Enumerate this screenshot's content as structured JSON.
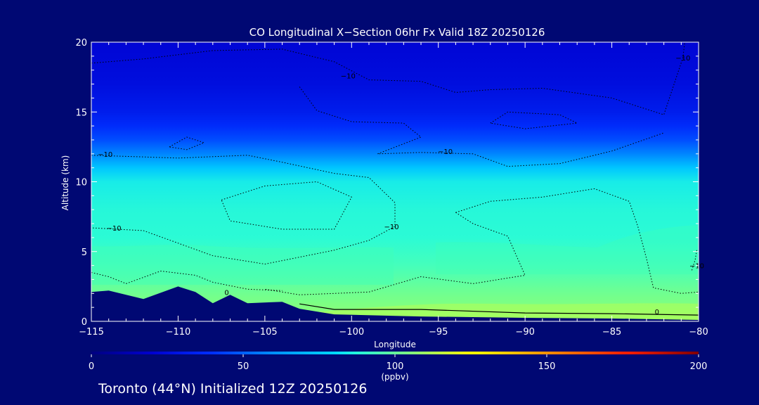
{
  "chart_data": {
    "type": "heatmap",
    "title": "CO Longitudinal X−Section 06hr  Fx Valid 18Z 20250126",
    "xlabel": "Longitude",
    "ylabel": "Altitude (km)",
    "xlim": [
      -115,
      -80
    ],
    "ylim": [
      0,
      20
    ],
    "x_ticks": [
      -115,
      -110,
      -105,
      -100,
      -95,
      -90,
      -85,
      -80
    ],
    "x_tick_labels": [
      "−115",
      "−110",
      "−105",
      "−100",
      "−95",
      "−90",
      "−85",
      "−80"
    ],
    "y_ticks": [
      0,
      5,
      10,
      15,
      20
    ],
    "y_tick_labels": [
      "0",
      "5",
      "10",
      "15",
      "20"
    ],
    "colorbar": {
      "label": "(ppbv)",
      "range": [
        0,
        200
      ],
      "ticks": [
        0,
        50,
        100,
        150,
        200
      ],
      "tick_labels": [
        "0",
        "50",
        "100",
        "150",
        "200"
      ],
      "stops": [
        {
          "v": 0,
          "c": "#000080"
        },
        {
          "v": 20,
          "c": "#0000d0"
        },
        {
          "v": 40,
          "c": "#0030ff"
        },
        {
          "v": 60,
          "c": "#0090ff"
        },
        {
          "v": 80,
          "c": "#00d8ff"
        },
        {
          "v": 90,
          "c": "#30ffd0"
        },
        {
          "v": 105,
          "c": "#80ff80"
        },
        {
          "v": 125,
          "c": "#ffff00"
        },
        {
          "v": 150,
          "c": "#ff9000"
        },
        {
          "v": 175,
          "c": "#ff2000"
        },
        {
          "v": 200,
          "c": "#800000"
        }
      ]
    },
    "co_profile": [
      {
        "alt": 0,
        "ppbv": 108
      },
      {
        "alt": 2,
        "ppbv": 102
      },
      {
        "alt": 4,
        "ppbv": 94
      },
      {
        "alt": 6,
        "ppbv": 89
      },
      {
        "alt": 8,
        "ppbv": 88
      },
      {
        "alt": 10,
        "ppbv": 85
      },
      {
        "alt": 11,
        "ppbv": 75
      },
      {
        "alt": 12,
        "ppbv": 58
      },
      {
        "alt": 13,
        "ppbv": 46
      },
      {
        "alt": 14,
        "ppbv": 38
      },
      {
        "alt": 15,
        "ppbv": 32
      },
      {
        "alt": 17,
        "ppbv": 26
      },
      {
        "alt": 20,
        "ppbv": 22
      }
    ],
    "terrain_km": [
      {
        "lon": -115,
        "alt": 2.1
      },
      {
        "lon": -114,
        "alt": 2.2
      },
      {
        "lon": -112,
        "alt": 1.6
      },
      {
        "lon": -110,
        "alt": 2.5
      },
      {
        "lon": -109,
        "alt": 2.1
      },
      {
        "lon": -108,
        "alt": 1.3
      },
      {
        "lon": -107,
        "alt": 1.9
      },
      {
        "lon": -106,
        "alt": 1.3
      },
      {
        "lon": -104,
        "alt": 1.4
      },
      {
        "lon": -103,
        "alt": 0.9
      },
      {
        "lon": -101,
        "alt": 0.5
      },
      {
        "lon": -96,
        "alt": 0.35
      },
      {
        "lon": -90,
        "alt": 0.25
      },
      {
        "lon": -85,
        "alt": 0.2
      },
      {
        "lon": -80,
        "alt": 0.1
      }
    ],
    "contour_labels": [
      {
        "text": "−10",
        "lon": -100.2,
        "alt": 17.4
      },
      {
        "text": "−10",
        "lon": -114.2,
        "alt": 11.8
      },
      {
        "text": "−10",
        "lon": -94.6,
        "alt": 12.0
      },
      {
        "text": "−10",
        "lon": -113.7,
        "alt": 6.5
      },
      {
        "text": "−10",
        "lon": -97.7,
        "alt": 6.6
      },
      {
        "text": "−10",
        "lon": -80.9,
        "alt": 18.7
      },
      {
        "text": "0",
        "lon": -107.2,
        "alt": 1.9
      },
      {
        "text": "0",
        "lon": -82.4,
        "alt": 0.5
      },
      {
        "text": "−10",
        "lon": -80.1,
        "alt": 3.8
      }
    ]
  },
  "footer": {
    "text": "Toronto (44°N) Initialized 12Z 20250126"
  }
}
